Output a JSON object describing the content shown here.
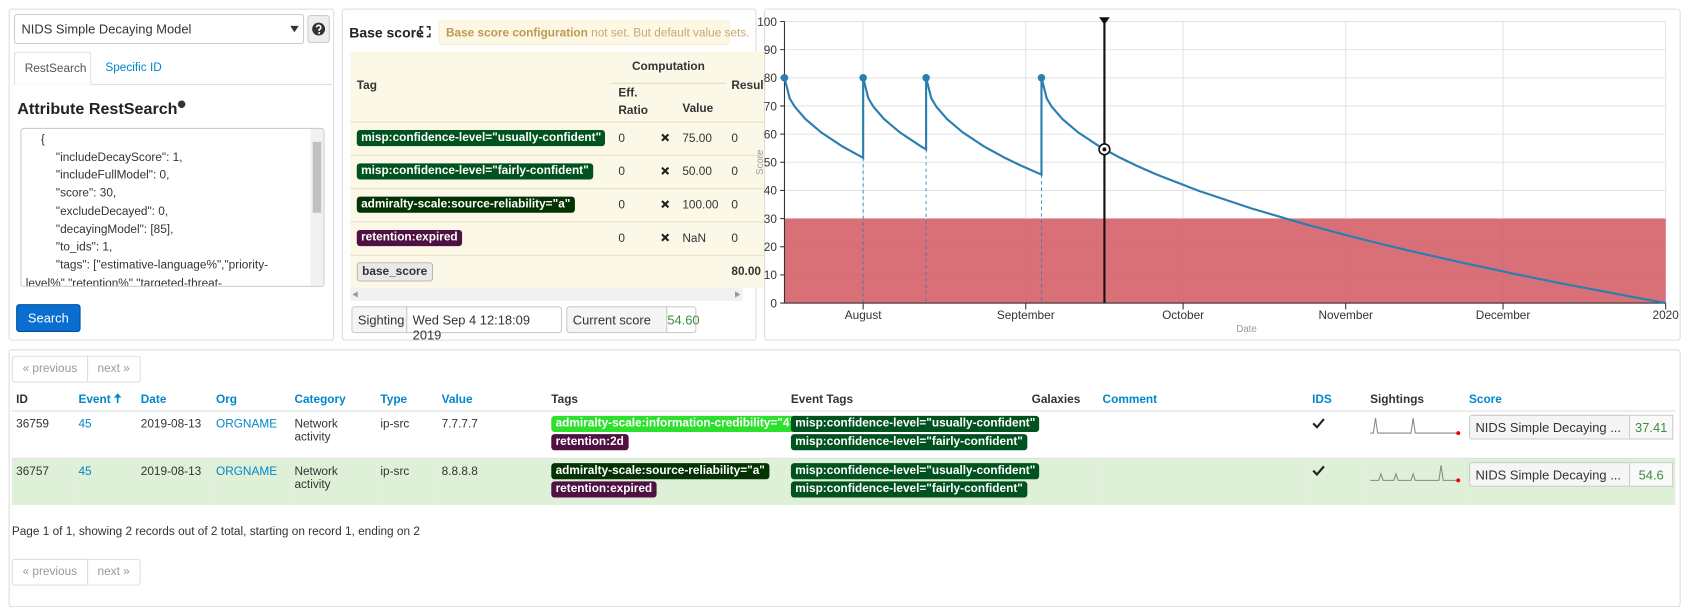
{
  "model_select": "NIDS Simple Decaying Model",
  "tabs": [
    "RestSearch",
    "Specific ID"
  ],
  "restsearch": {
    "title": "Attribute RestSearch",
    "query_lines": [
      "{",
      "\"includeDecayScore\": 1,",
      "\"includeFullModel\": 0,",
      "\"score\": 30,",
      "\"excludeDecayed\": 0,",
      "\"decayingModel\": [85],",
      "\"to_ids\": 1,",
      "\"tags\": [\"estimative-language%\",\"priority-level%\",\"retention%\",\"targeted-threat-"
    ],
    "button": "Search"
  },
  "base_score": {
    "title": "Base score",
    "notice_strong": "Base score configuration",
    "notice_rest": "not set. But default value sets.",
    "headers": {
      "tag": "Tag",
      "computation": "Computation",
      "eff_ratio": "Eff. Ratio",
      "value": "Value",
      "result": "Result"
    },
    "rows": [
      {
        "tag": "misp:confidence-level=\"usually-confident\"",
        "ratio": "0",
        "value": "75.00",
        "result": "0"
      },
      {
        "tag": "misp:confidence-level=\"fairly-confident\"",
        "ratio": "0",
        "value": "50.00",
        "result": "0"
      },
      {
        "tag": "admiralty-scale:source-reliability=\"a\"",
        "ratio": "0",
        "value": "100.00",
        "result": "0"
      },
      {
        "tag": "retention:expired",
        "ratio": "0",
        "value": "NaN",
        "result": "0"
      }
    ],
    "total": {
      "label": "base_score",
      "value": "80.00"
    },
    "sighting": {
      "label": "Sighting",
      "date": "Wed Sep 4 12:18:09 2019"
    },
    "current_score": {
      "label": "Current score",
      "value": "54.60"
    }
  },
  "chart_data": {
    "type": "line",
    "y_label": "Score",
    "x_label": "Date",
    "xlim": [
      198,
      366
    ],
    "xticks": [
      {
        "value": 213,
        "label": "August"
      },
      {
        "value": 244,
        "label": "September"
      },
      {
        "value": 274,
        "label": "October"
      },
      {
        "value": 305,
        "label": "November"
      },
      {
        "value": 335,
        "label": "December"
      },
      {
        "value": 366,
        "label": "2020"
      }
    ],
    "ylim": [
      0,
      100
    ],
    "yticks": [
      0,
      10,
      20,
      30,
      40,
      50,
      60,
      70,
      80,
      90,
      100
    ],
    "grid": true,
    "x": [
      198,
      199,
      200,
      202,
      205,
      209,
      213,
      213,
      214,
      215,
      217,
      220,
      224,
      225,
      225,
      226,
      227,
      229,
      232,
      236,
      240,
      243,
      247,
      247,
      248,
      249,
      251,
      254,
      258,
      259,
      262,
      265,
      269,
      277,
      287,
      297,
      307,
      317,
      327,
      337,
      347,
      357,
      366
    ],
    "series": [
      {
        "color": "#2b7fb0",
        "values": [
          80,
          72.67,
          69.63,
          65.33,
          60.6,
          55.68,
          51.6,
          80,
          72.67,
          69.63,
          65.33,
          60.6,
          55.68,
          54.6,
          80,
          72.67,
          69.63,
          65.33,
          60.6,
          55.68,
          51.6,
          48.89,
          45.6,
          80,
          72.67,
          69.63,
          65.33,
          60.6,
          55.68,
          54.6,
          51.6,
          48.89,
          45.6,
          39.83,
          33.62,
          28.14,
          23.19,
          18.64,
          14.41,
          10.43,
          6.67,
          3.09,
          0
        ]
      }
    ],
    "sightings": {
      "x": [
        198,
        213,
        225,
        247
      ],
      "values": [
        80,
        80,
        80,
        80
      ]
    },
    "threshold": 30,
    "threshold_color": "#d4575f",
    "current": {
      "x": 259,
      "value": 54.6
    }
  },
  "attributes": {
    "pagination": {
      "previous": "« previous",
      "next": "next »"
    },
    "headers": [
      "ID",
      "Event",
      "Date",
      "Org",
      "Category",
      "Type",
      "Value",
      "Tags",
      "Event Tags",
      "Galaxies",
      "Comment",
      "IDS",
      "Sightings",
      "Score"
    ],
    "rows": [
      {
        "id": "36759",
        "event": "45",
        "date": "2019-08-13",
        "org": "ORGNAME",
        "category": "Network activity",
        "type": "ip-src",
        "value": "7.7.7.7",
        "tags": [
          "admiralty-scale:information-credibility=\"4\"",
          "retention:2d"
        ],
        "event_tags": [
          "misp:confidence-level=\"usually-confident\"",
          "misp:confidence-level=\"fairly-confident\""
        ],
        "score_model": "NIDS Simple Decaying ...",
        "score": "37.41"
      },
      {
        "id": "36757",
        "event": "45",
        "date": "2019-08-13",
        "org": "ORGNAME",
        "category": "Network activity",
        "type": "ip-src",
        "value": "8.8.8.8",
        "tags": [
          "admiralty-scale:source-reliability=\"a\"",
          "retention:expired"
        ],
        "event_tags": [
          "misp:confidence-level=\"usually-confident\"",
          "misp:confidence-level=\"fairly-confident\""
        ],
        "score_model": "NIDS Simple Decaying ...",
        "score": "54.6"
      }
    ],
    "footer": "Page 1 of 1, showing 2 records out of 2 total, starting on record 1, ending on 2"
  }
}
